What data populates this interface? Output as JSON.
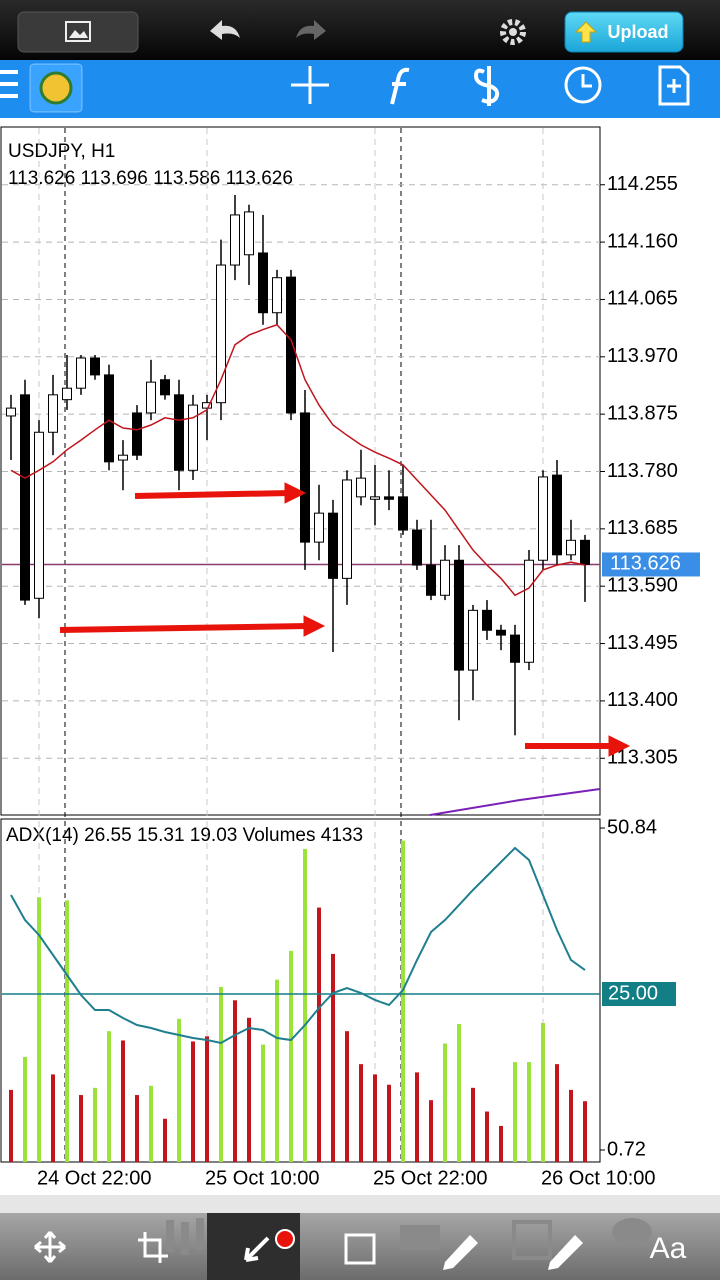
{
  "app": {
    "upload": "Upload",
    "text_tool": "Aa"
  },
  "chart_data": [
    {
      "type": "candlestick",
      "title": "USDJPY, H1",
      "subtitle": "113.626 113.696 113.586 113.626",
      "categories": [
        null,
        null,
        "24 Oct 22:00",
        null,
        null,
        null,
        null,
        null,
        null,
        null,
        null,
        null,
        null,
        null,
        "25 Oct 10:00",
        null,
        null,
        null,
        null,
        null,
        null,
        null,
        null,
        null,
        null,
        null,
        "25 Oct 22:00",
        null,
        null,
        null,
        null,
        null,
        null,
        null,
        null,
        null,
        null,
        null,
        "26 Oct 10:00",
        null,
        null,
        null
      ],
      "open": [
        113.872,
        113.907,
        113.57,
        113.845,
        113.899,
        113.918,
        113.968,
        113.94,
        113.799,
        113.877,
        113.877,
        113.932,
        113.907,
        113.782,
        113.885,
        113.894,
        114.122,
        114.139,
        114.142,
        114.043,
        114.102,
        113.877,
        113.663,
        113.711,
        113.603,
        113.738,
        113.734,
        113.738,
        113.738,
        113.683,
        113.625,
        113.575,
        113.633,
        113.451,
        113.55,
        113.517,
        113.509,
        113.464,
        113.633,
        113.774,
        113.642,
        113.666
      ],
      "high": [
        113.907,
        113.932,
        113.865,
        113.94,
        113.973,
        113.973,
        113.973,
        113.957,
        113.832,
        113.89,
        113.965,
        113.94,
        113.932,
        113.907,
        113.907,
        114.164,
        114.238,
        114.222,
        114.205,
        114.114,
        114.114,
        113.915,
        113.758,
        113.733,
        113.782,
        113.816,
        113.791,
        113.782,
        113.791,
        113.7,
        113.7,
        113.658,
        113.658,
        113.559,
        113.567,
        113.526,
        113.526,
        113.65,
        113.782,
        113.799,
        113.7,
        113.675
      ],
      "low": [
        113.799,
        113.559,
        113.537,
        113.807,
        113.882,
        113.907,
        113.932,
        113.782,
        113.749,
        113.799,
        113.865,
        113.899,
        113.749,
        113.766,
        113.832,
        113.865,
        114.097,
        114.089,
        114.023,
        114.023,
        113.865,
        113.617,
        113.633,
        113.481,
        113.559,
        113.724,
        113.691,
        113.716,
        113.675,
        113.617,
        113.567,
        113.567,
        113.368,
        113.401,
        113.501,
        113.484,
        113.343,
        113.451,
        113.617,
        113.625,
        113.633,
        113.564
      ],
      "close": [
        113.885,
        113.567,
        113.845,
        113.907,
        113.918,
        113.968,
        113.94,
        113.796,
        113.807,
        113.807,
        113.928,
        113.907,
        113.782,
        113.89,
        113.894,
        114.122,
        114.205,
        114.21,
        114.043,
        114.101,
        113.877,
        113.663,
        113.711,
        113.603,
        113.766,
        113.769,
        113.738,
        113.734,
        113.683,
        113.625,
        113.575,
        113.633,
        113.451,
        113.55,
        113.517,
        113.509,
        113.464,
        113.633,
        113.771,
        113.642,
        113.666,
        113.626
      ],
      "up_color": "#ffffff",
      "down_color": "#000000",
      "ma": {
        "color": "#c0141c",
        "values": [
          113.782,
          113.769,
          113.782,
          113.796,
          113.816,
          113.832,
          113.849,
          113.865,
          113.852,
          113.849,
          113.857,
          113.869,
          113.865,
          113.869,
          113.882,
          113.932,
          113.99,
          114.006,
          114.015,
          114.023,
          113.998,
          113.932,
          113.89,
          113.857,
          113.84,
          113.824,
          113.812,
          113.802,
          113.791,
          113.766,
          113.741,
          113.716,
          113.683,
          113.65,
          113.625,
          113.603,
          113.575,
          113.587,
          113.617,
          113.625,
          113.63,
          113.625
        ]
      },
      "current_price": 113.626,
      "current_price_color": "#3a8ee6",
      "ylim": [
        113.211,
        114.349
      ],
      "yticks": [
        114.255,
        {
          "value": 114.16,
          "label": "114.160"
        },
        114.065,
        {
          "value": 113.97,
          "label": "113.970"
        },
        113.875,
        {
          "value": 113.78,
          "label": "113.780"
        },
        113.685,
        {
          "value": 113.59,
          "label": "113.590"
        },
        113.495,
        {
          "value": 113.4,
          "label": "113.400"
        },
        113.305
      ],
      "grid": true
    },
    {
      "type": "indicator",
      "title": "ADX(14) 26.55 15.31 19.03 Volumes 4133",
      "volumes": {
        "axis": "y2",
        "values": [
          4132,
          6021,
          15171,
          5018,
          14994,
          3837,
          4250,
          7497,
          6966,
          3837,
          4368,
          2479,
          8205,
          6907,
          7202,
          10035,
          9268,
          8264,
          6729,
          10448,
          12101,
          17945,
          14580,
          11924,
          7497,
          5608,
          5018,
          4427,
          18417,
          5136,
          3542,
          6788,
          7910,
          4250,
          2892,
          2066,
          5726,
          5726,
          7969,
          5608,
          4132,
          3483
        ],
        "colors": [
          "#c4141c",
          "#9be33a",
          "#9be33a",
          "#c4141c",
          "#9be33a",
          "#c4141c",
          "#9be33a",
          "#9be33a",
          "#c4141c",
          "#c4141c",
          "#9be33a",
          "#c4141c",
          "#9be33a",
          "#c4141c",
          "#c4141c",
          "#9be33a",
          "#c4141c",
          "#c4141c",
          "#9be33a",
          "#9be33a",
          "#9be33a",
          "#9be33a",
          "#c4141c",
          "#c4141c",
          "#c4141c",
          "#c4141c",
          "#c4141c",
          "#c4141c",
          "#9be33a",
          "#c4141c",
          "#c4141c",
          "#9be33a",
          "#9be33a",
          "#c4141c",
          "#c4141c",
          "#c4141c",
          "#9be33a",
          "#9be33a",
          "#9be33a",
          "#c4141c",
          "#c4141c",
          "#c4141c"
        ]
      },
      "adx": {
        "color": "#1f7f8f",
        "values": [
          40.41,
          36.52,
          34.18,
          31.07,
          27.96,
          24.84,
          22.51,
          22.51,
          21.26,
          20.17,
          19.71,
          19.08,
          18.62,
          18.15,
          17.84,
          17.37,
          18.62,
          19.71,
          19.4,
          18.15,
          17.84,
          20.17,
          22.82,
          25.16,
          25.93,
          25.16,
          24.07,
          23.29,
          25.62,
          30.29,
          34.65,
          36.52,
          38.85,
          41.19,
          43.37,
          45.55,
          47.73,
          45.86,
          40.41,
          34.96,
          30.29,
          28.73
        ]
      },
      "level": {
        "value": 25,
        "label": "25.00"
      },
      "level_color": "#127f86",
      "ylim": [
        -1.15,
        52.09
      ],
      "yticks": [
        50.84,
        0.72
      ],
      "y2lim": [
        0,
        19600
      ]
    }
  ]
}
